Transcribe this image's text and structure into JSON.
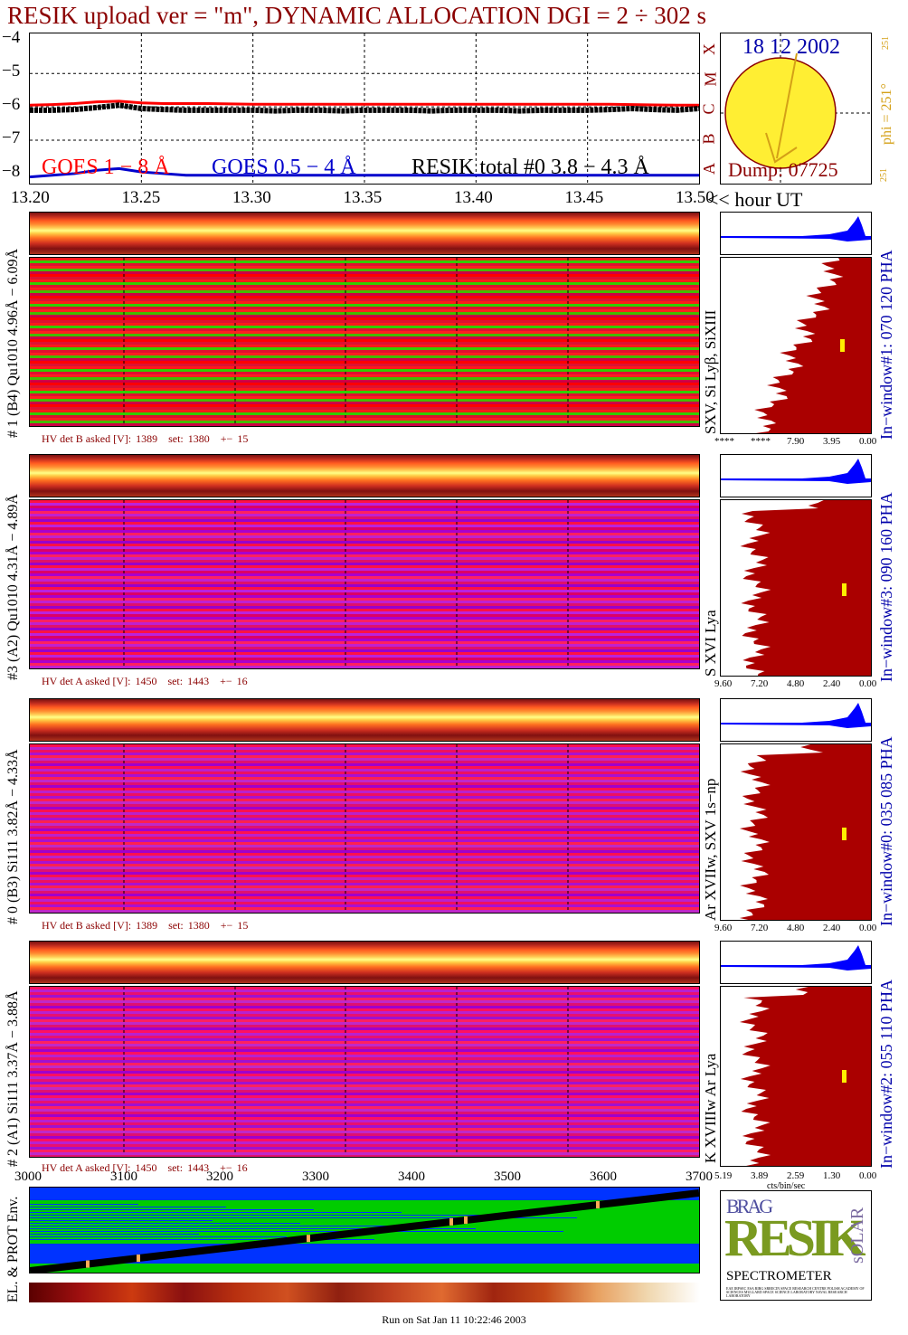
{
  "title": "RESIK upload ver = \"m\", DYNAMIC ALLOCATION  DGI =   2 ÷ 302 s",
  "top_plot": {
    "yticks": [
      "−4",
      "−5",
      "−6",
      "−7",
      "−8"
    ],
    "goes_right_labels": [
      "X",
      "M",
      "C",
      "B",
      "A"
    ],
    "legend_goes18": "GOES 1 − 8 Å",
    "legend_goes054": "GOES 0.5 − 4 Å",
    "legend_resik": "RESIK total #0  3.8 − 4.3 Å",
    "xticks": [
      "13.20",
      "13.25",
      "13.30",
      "13.35",
      "13.40",
      "13.45",
      "13.50"
    ],
    "xunit": "<< hour UT"
  },
  "sun": {
    "date": "18 12 2002",
    "dump": "Dump: 07725",
    "phi": "phi = 251°",
    "phi_sup": "251",
    "phi_bottom": "251"
  },
  "panels": [
    {
      "ylabel": "# 1 (B4) Qu1010 4.96Å − 6.09Å",
      "lines": "SXV, Si Lyβ, SiXIII",
      "window": "In−window#1:  070 120 PHA",
      "hv_label": "HV det B asked [V]:",
      "hv_asked": "1389",
      "hv_set_label": "set:",
      "hv_set": "1380",
      "hv_pm": "+−",
      "hv_err": "15",
      "axis_ticks": [
        "****",
        "****",
        "7.90",
        "3.95",
        "0.00"
      ]
    },
    {
      "ylabel": "#3 (A2) Qu1010  4.31Å − 4.89Å",
      "lines": "S XVI Lya",
      "window": "In−window#3:  090 160 PHA",
      "hv_label": "HV det A asked [V]:",
      "hv_asked": "1450",
      "hv_set_label": "set:",
      "hv_set": "1443",
      "hv_pm": "+−",
      "hv_err": "16",
      "axis_ticks": [
        "9.60",
        "7.20",
        "4.80",
        "2.40",
        "0.00"
      ]
    },
    {
      "ylabel": "# 0 (B3) Si111  3.82Å − 4.33Å",
      "lines": "Ar XVIIw,  SXV 1s−np",
      "window": "In−window#0:  035 085 PHA",
      "hv_label": "HV det B asked [V]:",
      "hv_asked": "1389",
      "hv_set_label": "set:",
      "hv_set": "1380",
      "hv_pm": "+−",
      "hv_err": "15",
      "axis_ticks": [
        "9.60",
        "7.20",
        "4.80",
        "2.40",
        "0.00"
      ]
    },
    {
      "ylabel": "# 2 (A1) Si111  3.37Å − 3.88Å",
      "lines": "K XVIIIw  Ar Lya",
      "window": "In−window#2:  055 110 PHA",
      "hv_label": "HV det A asked [V]:",
      "hv_asked": "1450",
      "hv_set_label": "set:",
      "hv_set": "1443",
      "hv_pm": "+−",
      "hv_err": "16",
      "axis_ticks": [
        "5.19",
        "3.89",
        "2.59",
        "1.30",
        "0.00"
      ],
      "axis_unit": "cts/bin/sec"
    }
  ],
  "bottom_plot": {
    "ylabel": "EL. & PROT Env.",
    "xticks": [
      "3000",
      "3100",
      "3200",
      "3300",
      "3400",
      "3500",
      "3600",
      "3700"
    ]
  },
  "logo": {
    "top": "BRAG",
    "main": "RESIK",
    "side": "sOLAR",
    "bottom": "SPECTROMETER",
    "fine_print": "EAE IRPSEC ESA RIRG SRRECIN SPACE RESEARCH CENTRE POLISH ACADEMY OF SCIENCES MULLARD SPACE SCIENCE LABORATORY NAVAL RESEARCH LABORATORY"
  },
  "footer": "Run on Sat Jan 11 10:22:46 2003",
  "chart_data": [
    {
      "type": "line",
      "title": "RESIK upload ver = \"m\", DYNAMIC ALLOCATION  DGI =   2 ÷ 302 s",
      "xlabel": "<< hour UT",
      "ylabel": "",
      "xlim": [
        13.2,
        13.5
      ],
      "ylim": [
        -8.3,
        -3.8
      ],
      "y_log": true,
      "grid": true,
      "x": [
        13.2,
        13.21,
        13.22,
        13.23,
        13.24,
        13.25,
        13.26,
        13.27,
        13.28,
        13.29,
        13.3,
        13.31,
        13.32,
        13.33,
        13.34,
        13.35,
        13.36,
        13.37,
        13.38,
        13.39,
        13.4,
        13.41,
        13.42,
        13.43,
        13.44,
        13.45,
        13.46,
        13.47,
        13.48,
        13.49,
        13.5
      ],
      "series": [
        {
          "name": "GOES 1 − 8 Å",
          "color": "#ff0000",
          "values": [
            -5.95,
            -5.93,
            -5.9,
            -5.85,
            -5.83,
            -5.88,
            -5.9,
            -5.9,
            -5.9,
            -5.91,
            -5.92,
            -5.92,
            -5.92,
            -5.92,
            -5.92,
            -5.92,
            -5.92,
            -5.92,
            -5.92,
            -5.92,
            -5.92,
            -5.92,
            -5.92,
            -5.92,
            -5.92,
            -5.92,
            -5.92,
            -5.93,
            -5.94,
            -5.95,
            -5.95
          ]
        },
        {
          "name": "GOES 0.5 − 4 Å",
          "color": "#0000cc",
          "values": [
            -8.1,
            -8.05,
            -8.0,
            -7.9,
            -7.85,
            -7.95,
            -8.0,
            -8.05,
            -8.05,
            -8.05,
            -8.05,
            -8.05,
            -8.05,
            -8.05,
            -8.05,
            -8.05,
            -8.05,
            -8.05,
            -8.05,
            -8.05,
            -8.05,
            -8.05,
            -8.05,
            -8.05,
            -8.05,
            -8.05,
            -8.05,
            -8.05,
            -8.05,
            -8.05,
            -8.05
          ]
        },
        {
          "name": "RESIK total #0  3.8 − 4.3 Å",
          "color": "#000000",
          "values": [
            -6.1,
            -6.1,
            -6.08,
            -6.02,
            -5.95,
            -6.05,
            -6.08,
            -6.1,
            -6.1,
            -6.1,
            -6.1,
            -6.12,
            -6.1,
            -6.1,
            -6.12,
            -6.1,
            -6.1,
            -6.1,
            -6.12,
            -6.1,
            -6.1,
            -6.1,
            -6.12,
            -6.1,
            -6.1,
            -6.1,
            -6.08,
            -6.05,
            -6.08,
            -6.1,
            -6.05
          ]
        }
      ]
    },
    {
      "type": "heatmap",
      "title": "",
      "xlabel": "",
      "ylabel": "EL. & PROT Env.",
      "xlim": [
        3000,
        3700
      ],
      "xticks": [
        3000,
        3100,
        3200,
        3300,
        3400,
        3500,
        3600,
        3700
      ]
    }
  ]
}
